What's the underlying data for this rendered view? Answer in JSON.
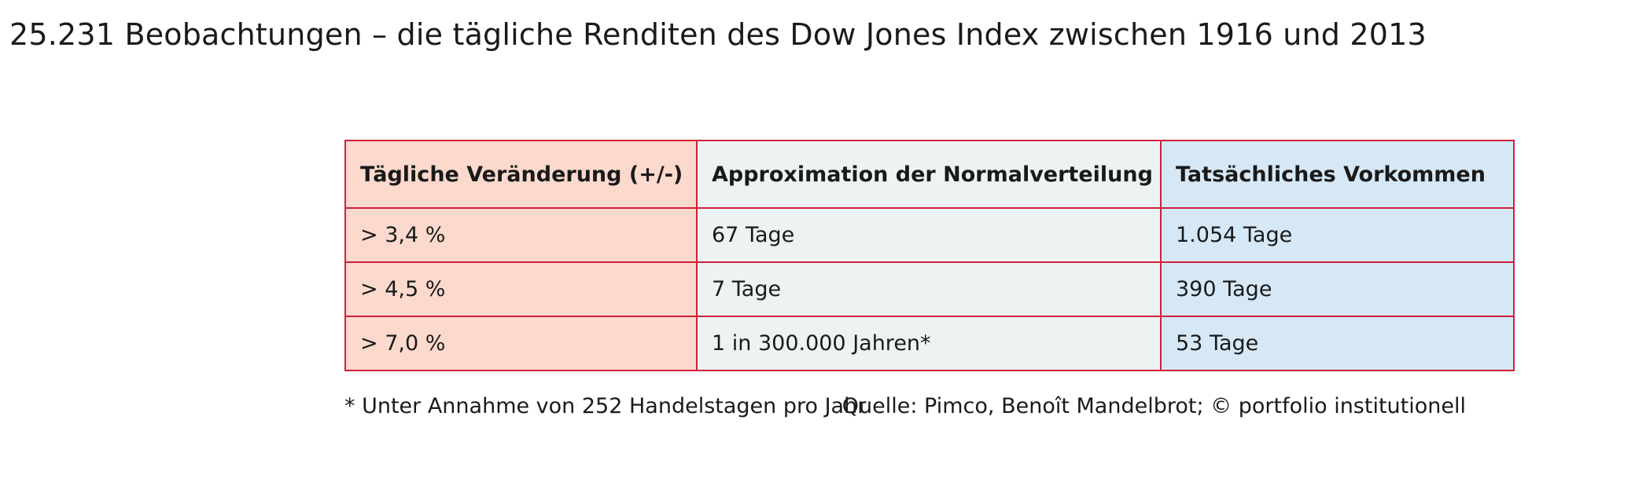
{
  "title": "25.231 Beobachtungen – die tägliche Renditen des Dow Jones Index zwischen 1916 und 2013",
  "chart_data": {
    "type": "table",
    "columns": [
      "Tägliche Veränderung (+/-)",
      "Approximation der Normalverteilung",
      "Tatsächliches Vorkommen"
    ],
    "rows": [
      [
        "> 3,4 %",
        "67 Tage",
        "1.054 Tage"
      ],
      [
        "> 4,5 %",
        "7 Tage",
        "390 Tage"
      ],
      [
        "> 7,0 %",
        "1 in 300.000 Jahren*",
        "53 Tage"
      ]
    ]
  },
  "footnote": "* Unter Annahme von 252 Handelstagen pro Jahr",
  "source": "Quelle: Pimco, Benoît Mandelbrot; © portfolio institutionell",
  "colors": {
    "border": "#d0203a",
    "col1_bg": "#fcd9cd",
    "col2_bg": "#edf3f3",
    "col3_bg": "#d6e8f6"
  }
}
